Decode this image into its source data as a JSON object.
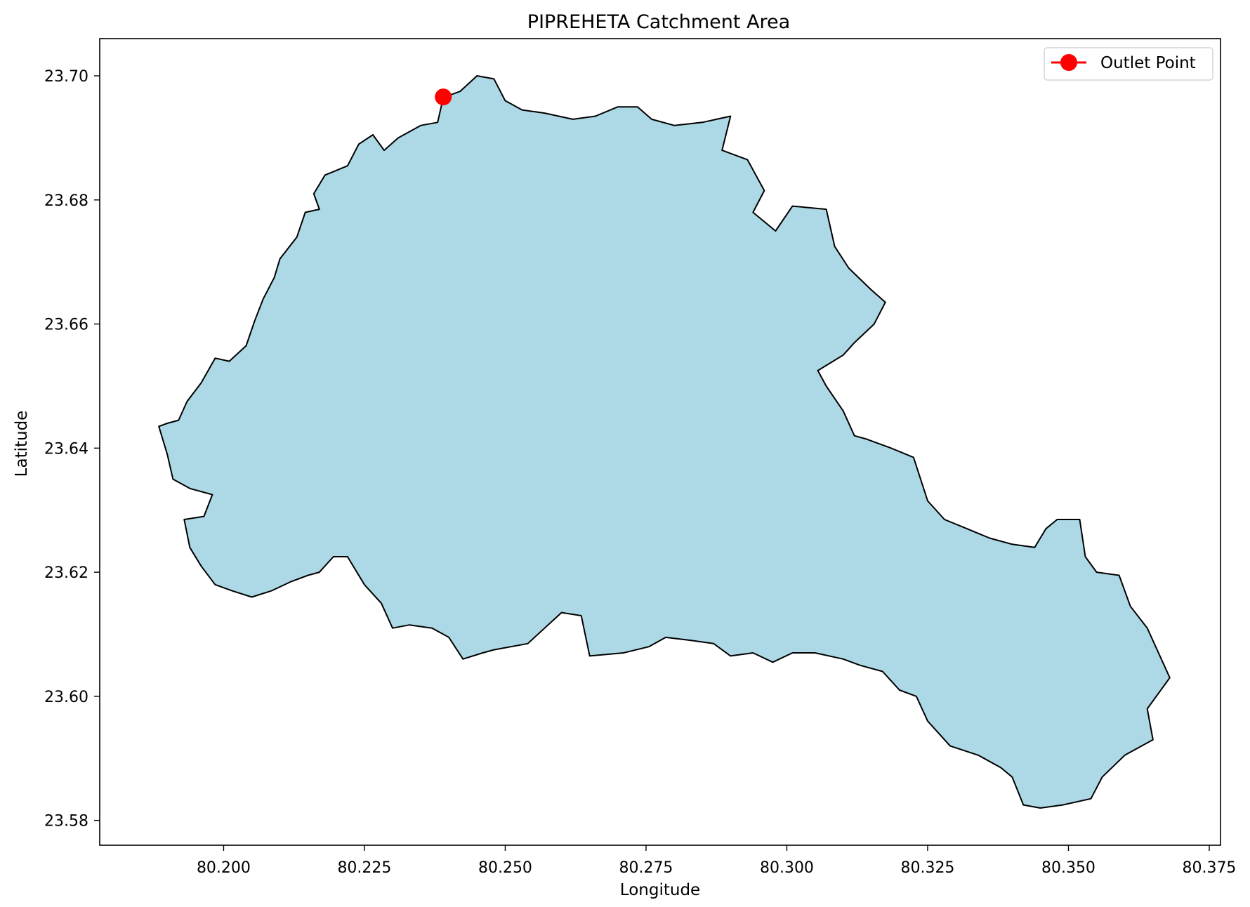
{
  "chart_data": {
    "type": "map",
    "title": "PIPREHETA Catchment Area",
    "xlabel": "Longitude",
    "ylabel": "Latitude",
    "xlim": [
      80.178,
      80.377
    ],
    "ylim": [
      23.576,
      23.706
    ],
    "xticks": [
      "80.200",
      "80.225",
      "80.250",
      "80.275",
      "80.300",
      "80.325",
      "80.350",
      "80.375"
    ],
    "xtick_values": [
      80.2,
      80.225,
      80.25,
      80.275,
      80.3,
      80.325,
      80.35,
      80.375
    ],
    "yticks": [
      "23.58",
      "23.60",
      "23.62",
      "23.64",
      "23.66",
      "23.68",
      "23.70"
    ],
    "ytick_values": [
      23.58,
      23.6,
      23.62,
      23.64,
      23.66,
      23.68,
      23.7
    ],
    "catchment": {
      "fill_color": "#add8e6",
      "edge_color": "#000000",
      "boundary": [
        [
          80.1885,
          23.6435
        ],
        [
          80.19,
          23.644
        ],
        [
          80.192,
          23.6445
        ],
        [
          80.1935,
          23.6475
        ],
        [
          80.196,
          23.6505
        ],
        [
          80.1985,
          23.6545
        ],
        [
          80.201,
          23.654
        ],
        [
          80.204,
          23.6565
        ],
        [
          80.2055,
          23.6605
        ],
        [
          80.207,
          23.664
        ],
        [
          80.209,
          23.6675
        ],
        [
          80.21,
          23.6705
        ],
        [
          80.213,
          23.674
        ],
        [
          80.2145,
          23.678
        ],
        [
          80.217,
          23.6785
        ],
        [
          80.216,
          23.681
        ],
        [
          80.218,
          23.684
        ],
        [
          80.222,
          23.6855
        ],
        [
          80.224,
          23.689
        ],
        [
          80.2265,
          23.6905
        ],
        [
          80.2285,
          23.688
        ],
        [
          80.231,
          23.69
        ],
        [
          80.235,
          23.692
        ],
        [
          80.238,
          23.6925
        ],
        [
          80.239,
          23.6965
        ],
        [
          80.242,
          23.6975
        ],
        [
          80.245,
          23.7
        ],
        [
          80.248,
          23.6995
        ],
        [
          80.25,
          23.696
        ],
        [
          80.253,
          23.6945
        ],
        [
          80.257,
          23.694
        ],
        [
          80.262,
          23.693
        ],
        [
          80.266,
          23.6935
        ],
        [
          80.27,
          23.695
        ],
        [
          80.2735,
          23.695
        ],
        [
          80.276,
          23.693
        ],
        [
          80.28,
          23.692
        ],
        [
          80.285,
          23.6925
        ],
        [
          80.29,
          23.6935
        ],
        [
          80.2885,
          23.688
        ],
        [
          80.293,
          23.6865
        ],
        [
          80.296,
          23.6815
        ],
        [
          80.294,
          23.678
        ],
        [
          80.298,
          23.675
        ],
        [
          80.301,
          23.679
        ],
        [
          80.307,
          23.6785
        ],
        [
          80.3085,
          23.6725
        ],
        [
          80.311,
          23.669
        ],
        [
          80.315,
          23.6655
        ],
        [
          80.3175,
          23.6635
        ],
        [
          80.3155,
          23.66
        ],
        [
          80.312,
          23.657
        ],
        [
          80.31,
          23.655
        ],
        [
          80.3055,
          23.6525
        ],
        [
          80.307,
          23.65
        ],
        [
          80.31,
          23.646
        ],
        [
          80.312,
          23.642
        ],
        [
          80.314,
          23.6415
        ],
        [
          80.3185,
          23.64
        ],
        [
          80.3225,
          23.6385
        ],
        [
          80.325,
          23.6315
        ],
        [
          80.328,
          23.6285
        ],
        [
          80.332,
          23.627
        ],
        [
          80.336,
          23.6255
        ],
        [
          80.34,
          23.6245
        ],
        [
          80.344,
          23.624
        ],
        [
          80.346,
          23.627
        ],
        [
          80.348,
          23.6285
        ],
        [
          80.352,
          23.6285
        ],
        [
          80.353,
          23.6225
        ],
        [
          80.355,
          23.62
        ],
        [
          80.359,
          23.6195
        ],
        [
          80.361,
          23.6145
        ],
        [
          80.364,
          23.611
        ],
        [
          80.368,
          23.603
        ],
        [
          80.364,
          23.598
        ],
        [
          80.365,
          23.593
        ],
        [
          80.36,
          23.5905
        ],
        [
          80.356,
          23.587
        ],
        [
          80.354,
          23.5835
        ],
        [
          80.349,
          23.5825
        ],
        [
          80.345,
          23.582
        ],
        [
          80.342,
          23.5825
        ],
        [
          80.34,
          23.587
        ],
        [
          80.338,
          23.5885
        ],
        [
          80.334,
          23.5905
        ],
        [
          80.329,
          23.592
        ],
        [
          80.325,
          23.596
        ],
        [
          80.323,
          23.6
        ],
        [
          80.32,
          23.601
        ],
        [
          80.317,
          23.604
        ],
        [
          80.313,
          23.605
        ],
        [
          80.31,
          23.606
        ],
        [
          80.305,
          23.607
        ],
        [
          80.301,
          23.607
        ],
        [
          80.2975,
          23.6055
        ],
        [
          80.294,
          23.607
        ],
        [
          80.29,
          23.6065
        ],
        [
          80.287,
          23.6085
        ],
        [
          80.283,
          23.609
        ],
        [
          80.2785,
          23.6095
        ],
        [
          80.2755,
          23.608
        ],
        [
          80.271,
          23.607
        ],
        [
          80.265,
          23.6065
        ],
        [
          80.2635,
          23.613
        ],
        [
          80.26,
          23.6135
        ],
        [
          80.257,
          23.611
        ],
        [
          80.254,
          23.6085
        ],
        [
          80.248,
          23.6075
        ],
        [
          80.246,
          23.607
        ],
        [
          80.2425,
          23.606
        ],
        [
          80.24,
          23.6095
        ],
        [
          80.237,
          23.611
        ],
        [
          80.233,
          23.6115
        ],
        [
          80.23,
          23.611
        ],
        [
          80.228,
          23.615
        ],
        [
          80.225,
          23.618
        ],
        [
          80.222,
          23.6225
        ],
        [
          80.2195,
          23.6225
        ],
        [
          80.217,
          23.62
        ],
        [
          80.215,
          23.6195
        ],
        [
          80.212,
          23.6185
        ],
        [
          80.2085,
          23.617
        ],
        [
          80.205,
          23.616
        ],
        [
          80.2015,
          23.617
        ],
        [
          80.1985,
          23.618
        ],
        [
          80.196,
          23.621
        ],
        [
          80.194,
          23.624
        ],
        [
          80.193,
          23.6285
        ],
        [
          80.1965,
          23.629
        ],
        [
          80.198,
          23.6325
        ],
        [
          80.194,
          23.6335
        ],
        [
          80.191,
          23.635
        ],
        [
          80.19,
          23.639
        ],
        [
          80.1885,
          23.6435
        ]
      ]
    },
    "outlet": {
      "name": "Outlet Point",
      "lon": 80.239,
      "lat": 23.6966,
      "color": "#ff0000"
    },
    "legend": {
      "placement": "upper right",
      "entries": [
        "Outlet Point"
      ]
    }
  }
}
